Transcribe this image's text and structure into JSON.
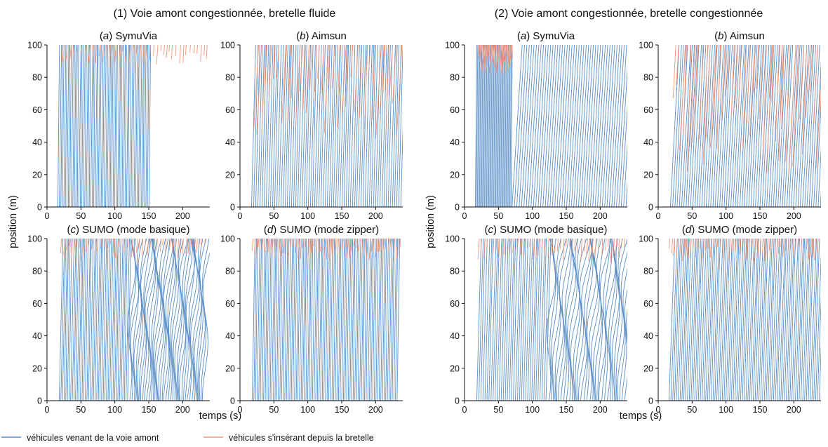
{
  "chart_data": {
    "type": "line",
    "figure_titles": [
      "(1) Voie amont congestionnée, bretelle fluide",
      "(2) Voie amont congestionnée, bretelle congestionnée"
    ],
    "xlabel": "temps (s)",
    "ylabel": "position (m)",
    "xlim": [
      0,
      240
    ],
    "ylim": [
      0,
      100
    ],
    "xticks": [
      0,
      50,
      100,
      150,
      200
    ],
    "yticks": [
      0,
      20,
      40,
      60,
      80,
      100
    ],
    "legend": {
      "placement": "bottom",
      "entries": [
        {
          "name": "véhicules venant de la voie amont",
          "color": "#5b8fc7"
        },
        {
          "name": "véhicules s'insérant depuis la bretelle",
          "color": "#f2967a"
        }
      ]
    },
    "panels": [
      {
        "group": 0,
        "letter": "a",
        "label": "SymuVia",
        "upstream": {
          "start": 16,
          "count": 62,
          "headway": 2.2,
          "crossing_time": 2,
          "main_slope_change": null
        },
        "ramp": {
          "start": 22,
          "end": 235,
          "headway": 5,
          "from_y": 88
        },
        "note": "mainline trajectories nearly vertical (fast) throughout"
      },
      {
        "group": 0,
        "letter": "b",
        "label": "Aimsun",
        "upstream": {
          "start": 17,
          "count": 72,
          "headway": 3.1,
          "crossing_time": 6
        },
        "ramp": {
          "start": 20,
          "end": 235,
          "headway": 6,
          "from_y": 40
        },
        "note": "slanted trajectories, long orange merge lines"
      },
      {
        "group": 0,
        "letter": "c",
        "label": "SUMO (mode basique)",
        "upstream": {
          "start": 18,
          "count": 90,
          "headway": 2.4,
          "crossing_time": 4
        },
        "ramp": {
          "start": 20,
          "end": 235,
          "headway": 4.5,
          "from_y": 88
        },
        "note": "stop-and-go waves after ~130 s"
      },
      {
        "group": 0,
        "letter": "d",
        "label": "SUMO (mode zipper)",
        "upstream": {
          "start": 18,
          "count": 90,
          "headway": 2.4,
          "crossing_time": 3
        },
        "ramp": {
          "start": 18,
          "end": 238,
          "headway": 3.2,
          "from_y": 86
        }
      },
      {
        "group": 1,
        "letter": "a",
        "label": "SymuVia",
        "upstream_phase1": {
          "start": 16,
          "end": 70,
          "headway": 1.5,
          "crossing_time": 2
        },
        "upstream_phase2": {
          "start": 70,
          "end": 240,
          "headway": 3.5,
          "crossing_time": 15
        },
        "ramp": {
          "start": 20,
          "end": 70,
          "headway": 1.2,
          "from_y": 82
        }
      },
      {
        "group": 1,
        "letter": "b",
        "label": "Aimsun",
        "upstream": {
          "start": 18,
          "count": 70,
          "headway": 3.3,
          "crossing_time": 12
        },
        "ramp": {
          "start": 22,
          "end": 240,
          "headway": 5,
          "from_y": 20
        }
      },
      {
        "group": 1,
        "letter": "c",
        "label": "SUMO (mode basique)",
        "upstream": {
          "start": 18,
          "count": 75,
          "headway": 3.0,
          "crossing_time": 6
        },
        "ramp": {
          "start": 20,
          "end": 236,
          "headway": 4.2,
          "from_y": 85
        }
      },
      {
        "group": 1,
        "letter": "d",
        "label": "SUMO (mode zipper)",
        "upstream": {
          "start": 16,
          "count": 85,
          "headway": 2.7,
          "crossing_time": 8
        },
        "ramp": {
          "start": 16,
          "end": 238,
          "headway": 3.5,
          "from_y": 86
        }
      }
    ]
  }
}
